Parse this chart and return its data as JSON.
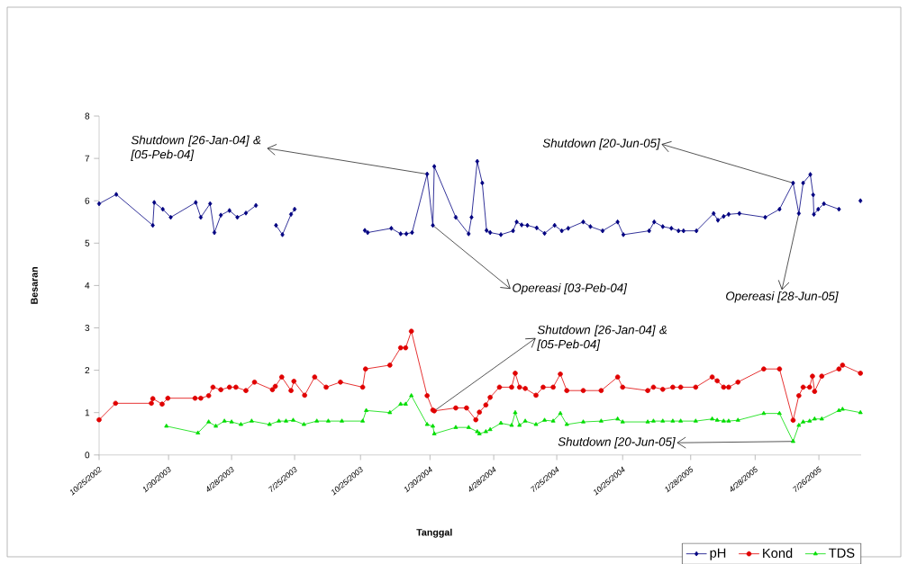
{
  "chart_data": {
    "type": "line",
    "xlabel": "Tanggal",
    "ylabel": "Besaran",
    "xlim": [
      "2002-10-25",
      "2005-09-23"
    ],
    "ylim": [
      0,
      8
    ],
    "yticks": [
      0,
      1,
      2,
      3,
      4,
      5,
      6,
      7,
      8
    ],
    "xticks": [
      {
        "value": "2002-10-25",
        "label": "10/25/2002"
      },
      {
        "value": "2003-01-30",
        "label": "1/30/2003"
      },
      {
        "value": "2003-04-28",
        "label": "4/28/2003"
      },
      {
        "value": "2003-07-25",
        "label": "7/25/2003"
      },
      {
        "value": "2003-10-25",
        "label": "10/25/2003"
      },
      {
        "value": "2004-01-30",
        "label": "1/30/2004"
      },
      {
        "value": "2004-04-28",
        "label": "4/28/2004"
      },
      {
        "value": "2004-07-25",
        "label": "7/25/2004"
      },
      {
        "value": "2004-10-25",
        "label": "10/25/2004"
      },
      {
        "value": "2005-01-28",
        "label": "1/28/2005"
      },
      {
        "value": "2005-04-28",
        "label": "4/28/2005"
      },
      {
        "value": "2005-07-26",
        "label": "7/26/2005"
      }
    ],
    "legend": "bottom right",
    "series": [
      {
        "name": "pH",
        "color": "#000080",
        "marker": "diamond",
        "x": [
          "2002-10-25",
          "2002-11-18",
          "2003-01-08",
          "2003-01-10",
          "2003-01-22",
          "2003-02-02",
          "2003-03-09",
          "2003-03-16",
          "2003-03-29",
          "2003-04-04",
          "2003-04-13",
          "2003-04-25",
          "2003-05-06",
          "2003-05-18",
          "2003-06-01",
          "2003-06-20",
          "2003-06-29",
          "2003-07-08",
          "2003-07-20",
          "2003-07-25",
          "2003-09-01",
          "2003-10-31",
          "2003-11-04",
          "2003-12-07",
          "2003-12-20",
          "2003-12-28",
          "2004-01-05",
          "2004-01-26",
          "2004-02-03",
          "2004-02-05",
          "2004-03-06",
          "2004-03-24",
          "2004-03-28",
          "2004-04-05",
          "2004-04-12",
          "2004-04-18",
          "2004-04-23",
          "2004-05-08",
          "2004-05-25",
          "2004-05-30",
          "2004-06-06",
          "2004-06-14",
          "2004-06-27",
          "2004-07-08",
          "2004-07-22",
          "2004-08-01",
          "2004-08-10",
          "2004-08-31",
          "2004-09-10",
          "2004-09-27",
          "2004-10-18",
          "2004-10-26",
          "2004-12-01",
          "2004-12-08",
          "2004-12-20",
          "2005-01-01",
          "2005-01-11",
          "2005-01-18",
          "2005-02-05",
          "2005-03-01",
          "2005-03-07",
          "2005-03-15",
          "2005-03-22",
          "2005-04-06",
          "2005-05-12",
          "2005-06-01",
          "2005-06-20",
          "2005-06-28",
          "2005-07-04",
          "2005-07-14",
          "2005-07-18",
          "2005-07-19",
          "2005-07-25",
          "2005-08-02",
          "2005-08-23",
          "2005-09-05",
          "2005-09-22"
        ],
        "values": [
          5.93,
          6.15,
          5.42,
          5.96,
          5.8,
          5.61,
          5.96,
          5.61,
          5.93,
          5.25,
          5.66,
          5.77,
          5.61,
          5.71,
          5.89,
          null,
          5.42,
          5.2,
          5.68,
          5.8,
          null,
          5.3,
          5.25,
          5.35,
          5.22,
          5.22,
          5.25,
          6.63,
          5.42,
          6.81,
          5.61,
          5.22,
          5.61,
          6.93,
          6.42,
          5.3,
          5.25,
          5.2,
          5.29,
          5.5,
          5.43,
          5.42,
          5.36,
          5.23,
          5.42,
          5.29,
          5.35,
          5.5,
          5.39,
          5.29,
          5.5,
          5.2,
          5.29,
          5.5,
          5.39,
          5.35,
          5.29,
          5.29,
          5.29,
          5.7,
          5.54,
          5.63,
          5.68,
          5.7,
          5.61,
          5.8,
          6.42,
          5.7,
          6.42,
          6.62,
          6.14,
          5.68,
          5.8,
          5.93,
          5.8,
          null,
          6.0
        ]
      },
      {
        "name": "Kond",
        "color": "#e00000",
        "marker": "circle",
        "x": [
          "2002-10-25",
          "2002-11-17",
          "2003-01-06",
          "2003-01-08",
          "2003-01-21",
          "2003-01-29",
          "2003-03-08",
          "2003-03-16",
          "2003-03-27",
          "2003-04-02",
          "2003-04-13",
          "2003-04-25",
          "2003-05-04",
          "2003-05-18",
          "2003-05-30",
          "2003-06-24",
          "2003-06-28",
          "2003-07-07",
          "2003-07-20",
          "2003-07-24",
          "2003-08-08",
          "2003-08-22",
          "2003-09-07",
          "2003-09-27",
          "2003-10-28",
          "2003-11-01",
          "2003-12-05",
          "2003-12-20",
          "2003-12-27",
          "2004-01-04",
          "2004-01-26",
          "2004-02-03",
          "2004-02-05",
          "2004-03-06",
          "2004-03-21",
          "2004-04-03",
          "2004-04-08",
          "2004-04-17",
          "2004-04-23",
          "2004-05-06",
          "2004-05-23",
          "2004-05-28",
          "2004-06-03",
          "2004-06-11",
          "2004-06-26",
          "2004-07-06",
          "2004-07-20",
          "2004-07-30",
          "2004-08-08",
          "2004-08-31",
          "2004-09-25",
          "2004-10-18",
          "2004-10-25",
          "2004-11-29",
          "2004-12-07",
          "2004-12-20",
          "2005-01-03",
          "2005-01-14",
          "2005-02-04",
          "2005-02-27",
          "2005-03-06",
          "2005-03-15",
          "2005-03-22",
          "2005-04-04",
          "2005-05-10",
          "2005-06-01",
          "2005-06-20",
          "2005-06-28",
          "2005-07-04",
          "2005-07-13",
          "2005-07-17",
          "2005-07-20",
          "2005-07-30",
          "2005-08-23",
          "2005-08-28",
          "2005-09-22"
        ],
        "values": [
          0.83,
          1.22,
          1.22,
          1.33,
          1.2,
          1.34,
          1.34,
          1.34,
          1.4,
          1.6,
          1.54,
          1.6,
          1.6,
          1.52,
          1.72,
          1.54,
          1.62,
          1.84,
          1.52,
          1.74,
          1.41,
          1.84,
          1.6,
          1.72,
          1.6,
          2.03,
          2.12,
          2.53,
          2.53,
          2.92,
          1.4,
          1.06,
          1.04,
          1.11,
          1.11,
          0.83,
          1.01,
          1.18,
          1.36,
          1.6,
          1.6,
          1.93,
          1.6,
          1.57,
          1.41,
          1.6,
          1.6,
          1.91,
          1.52,
          1.52,
          1.52,
          1.84,
          1.6,
          1.52,
          1.6,
          1.55,
          1.6,
          1.6,
          1.6,
          1.84,
          1.75,
          1.6,
          1.6,
          1.72,
          2.03,
          2.03,
          0.82,
          1.4,
          1.6,
          1.6,
          1.86,
          1.5,
          1.86,
          2.03,
          2.12,
          1.93
        ]
      },
      {
        "name": "TDS",
        "color": "#00dd00",
        "marker": "triangle",
        "x": [
          "2003-01-27",
          "2003-03-12",
          "2003-03-27",
          "2003-04-06",
          "2003-04-18",
          "2003-04-28",
          "2003-05-11",
          "2003-05-26",
          "2003-06-20",
          "2003-07-03",
          "2003-07-13",
          "2003-07-23",
          "2003-08-07",
          "2003-08-25",
          "2003-09-10",
          "2003-09-29",
          "2003-10-28",
          "2003-11-02",
          "2003-12-05",
          "2003-12-20",
          "2003-12-27",
          "2004-01-04",
          "2004-01-26",
          "2004-02-03",
          "2004-02-05",
          "2004-03-06",
          "2004-03-24",
          "2004-04-05",
          "2004-04-08",
          "2004-04-17",
          "2004-04-23",
          "2004-05-08",
          "2004-05-23",
          "2004-05-28",
          "2004-06-03",
          "2004-06-11",
          "2004-06-26",
          "2004-07-08",
          "2004-07-20",
          "2004-07-30",
          "2004-08-08",
          "2004-08-31",
          "2004-09-25",
          "2004-10-18",
          "2004-10-25",
          "2004-11-29",
          "2004-12-07",
          "2004-12-20",
          "2005-01-03",
          "2005-01-14",
          "2005-02-04",
          "2005-02-27",
          "2005-03-06",
          "2005-03-15",
          "2005-03-22",
          "2005-04-04",
          "2005-05-10",
          "2005-06-01",
          "2005-06-20",
          "2005-06-28",
          "2005-07-04",
          "2005-07-13",
          "2005-07-20",
          "2005-07-30",
          "2005-08-23",
          "2005-08-28",
          "2005-09-22"
        ],
        "values": [
          0.68,
          0.52,
          0.78,
          0.68,
          0.8,
          0.78,
          0.72,
          0.8,
          0.72,
          0.8,
          0.8,
          0.82,
          0.72,
          0.8,
          0.8,
          0.8,
          0.8,
          1.05,
          1.0,
          1.2,
          1.2,
          1.4,
          0.72,
          0.68,
          0.5,
          0.65,
          0.65,
          0.55,
          0.5,
          0.55,
          0.6,
          0.75,
          0.7,
          1.0,
          0.7,
          0.8,
          0.72,
          0.82,
          0.8,
          0.98,
          0.72,
          0.78,
          0.8,
          0.85,
          0.78,
          0.78,
          0.8,
          0.8,
          0.8,
          0.8,
          0.8,
          0.85,
          0.82,
          0.8,
          0.8,
          0.82,
          0.98,
          0.98,
          0.32,
          0.7,
          0.78,
          0.8,
          0.85,
          0.85,
          1.05,
          1.08,
          1.0
        ]
      }
    ],
    "annotations": [
      {
        "text": "Shutdown [26-Jan-04] & [05-Peb-04]",
        "x": "2004-01-26",
        "y": 6.63
      },
      {
        "text": "Opereasi [03-Peb-04]",
        "x": "2004-02-03",
        "y": 5.42
      },
      {
        "text": "Shutdown [26-Jan-04] & [05-Peb-04]",
        "x": "2004-02-05",
        "y": 1.04
      },
      {
        "text": "Shutdown [20-Jun-05]",
        "x": "2005-06-20",
        "y": 6.42
      },
      {
        "text": "Opereasi [28-Jun-05]",
        "x": "2005-06-28",
        "y": 5.7
      },
      {
        "text": "Shutdown [20-Jun-05]",
        "x": "2005-06-20",
        "y": 0.32
      }
    ]
  }
}
